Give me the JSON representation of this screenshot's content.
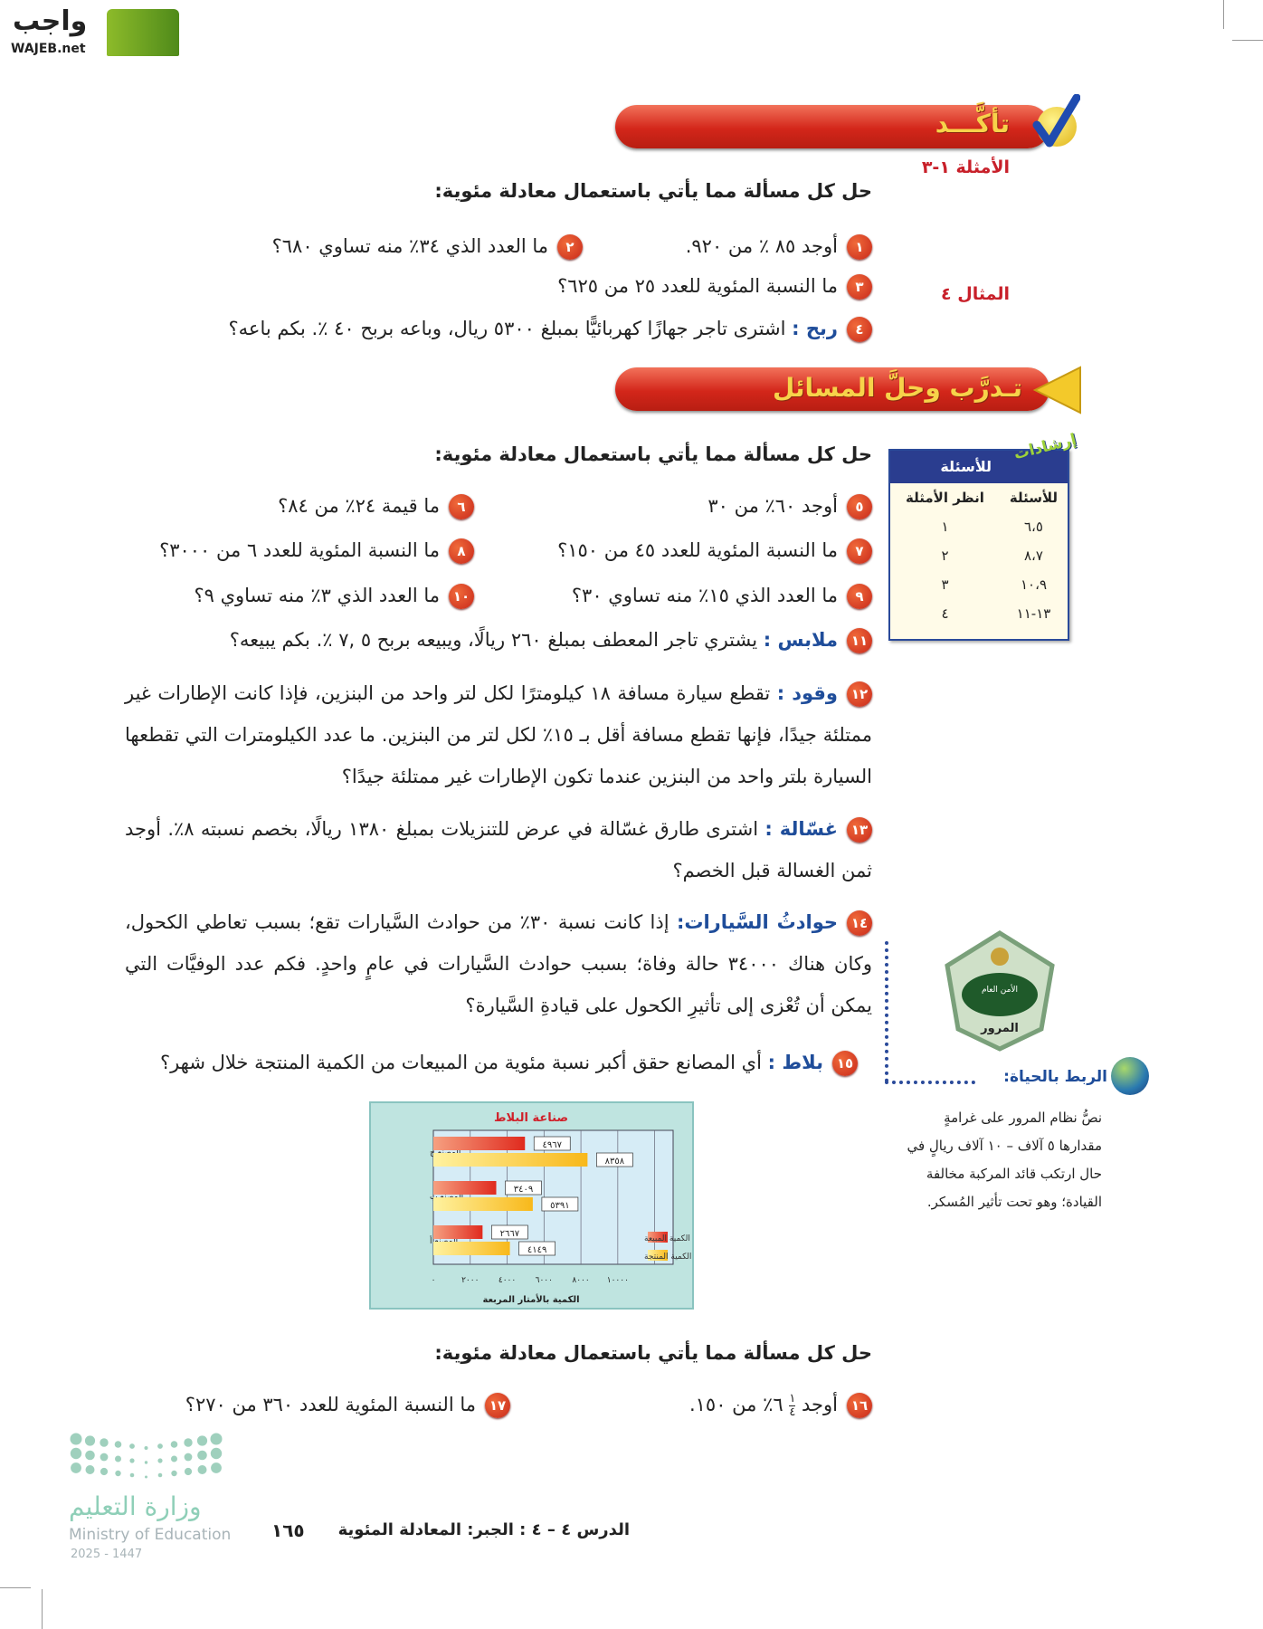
{
  "logo": {
    "arabic": "واجب",
    "latin": "WAJEB.net"
  },
  "check_section": {
    "title": "تأكَّـــد",
    "examples_ref": "الأمثلة ١-٣",
    "instruction": "حل كل مسألة مما يأتي باستعمال معادلة مئوية:",
    "example4_ref": "المثال ٤",
    "questions": [
      {
        "n": "١",
        "text": "أوجد ٨٥ ٪ من ٩٢٠."
      },
      {
        "n": "٢",
        "text": "ما العدد الذي ٣٤٪ منه تساوي ٦٨٠؟"
      },
      {
        "n": "٣",
        "text": "ما النسبة المئوية للعدد ٢٥ من ٦٢٥؟"
      },
      {
        "n": "٤",
        "label": "ربح :",
        "text": "اشترى تاجر جهازًا كهربائيًّا بمبلغ ٥٣٠٠ ريال، وباعه بربح ٤٠ ٪. بكم باعه؟"
      }
    ]
  },
  "practice_section": {
    "title": "تـدرَّب وحلَّ المسائل",
    "instruction": "حل كل مسألة مما يأتي باستعمال معادلة مئوية:",
    "questions": [
      {
        "n": "٥",
        "text": "أوجد ٦٠٪ من ٣٠"
      },
      {
        "n": "٦",
        "text": "ما قيمة ٢٤٪ من ٨٤؟"
      },
      {
        "n": "٧",
        "text": "ما النسبة المئوية للعدد ٤٥ من ١٥٠؟"
      },
      {
        "n": "٨",
        "text": "ما النسبة المئوية للعدد ٦ من ٣٠٠٠؟"
      },
      {
        "n": "٩",
        "text": "ما العدد الذي ١٥٪ منه تساوي ٣٠؟"
      },
      {
        "n": "١٠",
        "text": "ما العدد الذي ٣٪ منه تساوي ٩؟"
      },
      {
        "n": "١١",
        "label": "ملابس :",
        "text": "يشتري تاجر المعطف بمبلغ ٢٦٠ ريالًا، ويبيعه بربح ٥ ,٧ ٪. بكم يبيعه؟"
      },
      {
        "n": "١٢",
        "label": "وقود :",
        "text": "تقطع سيارة مسافة ١٨ كيلومترًا لكل لتر واحد من البنزين، فإذا كانت الإطارات غير ممتلئة جيدًا، فإنها تقطع مسافة أقل بـ ١٥٪ لكل لتر من البنزين. ما عدد الكيلومترات التي تقطعها السيارة بلتر واحد من البنزين عندما تكون الإطارات غير ممتلئة جيدًا؟"
      },
      {
        "n": "١٣",
        "label": "غسّالة :",
        "text": "اشترى طارق غسّالة في عرض للتنزيلات بمبلغ ١٣٨٠ ريالًا، بخصم نسبته ٨٪. أوجد ثمن الغسالة قبل الخصم؟"
      },
      {
        "n": "١٤",
        "label": "حوادثُ السَّيارات:",
        "text": "إذا كانت نسبة ٣٠٪ من حوادث السَّيارات تقع؛ بسبب تعاطي الكحول، وكان هناك ٣٤٠٠٠ حالة وفاة؛ بسبب حوادث السَّيارات في عامٍ واحدٍ. فكم عدد الوفيَّات التي يمكن أن تُعْزى إلى تأثيرِ الكحول على قيادةِ السَّيارة؟"
      },
      {
        "n": "١٥",
        "label": "بلاط :",
        "text": "أي المصانع حقق أكبر نسبة مئوية من المبيعات من الكمية المنتجة خلال شهر؟"
      }
    ]
  },
  "hints": {
    "badge": "إرشادات",
    "header": "للأسئلة",
    "columns": [
      "للأسئلة",
      "انظر الأمثلة"
    ],
    "rows": [
      [
        "٦،٥",
        "١"
      ],
      [
        "٨،٧",
        "٢"
      ],
      [
        "١٠،٩",
        "٣"
      ],
      [
        "١٣-١١",
        "٤"
      ]
    ]
  },
  "emblem": {
    "top": "الأمن العام",
    "bottom": "المرور"
  },
  "life_connection": {
    "title": "الربط بالحياة:",
    "text": "نصُّ نظام المرور على غرامةٍ مقدارها ٥ آلاف – ١٠ آلاف ريالٍ في حال ارتكب قائد المركبة مخالفة القيادة؛ وهو تحت تأثير المُسكر."
  },
  "chart_data": {
    "type": "bar",
    "orientation": "horizontal",
    "title": "صناعة البلاط",
    "xlabel": "الكمية بالأمتار المربعة",
    "ylabel": "",
    "categories": [
      "المصنع ج",
      "المصنع ب",
      "المصنع أ"
    ],
    "series": [
      {
        "name": "الكمية المبيعة",
        "values": [
          4967,
          3409,
          2667
        ],
        "labels": [
          "٤٩٦٧",
          "٣٤٠٩",
          "٢٦٦٧"
        ],
        "color": "#e02a1e"
      },
      {
        "name": "الكمية المنتجة",
        "values": [
          8358,
          5391,
          4149
        ],
        "labels": [
          "٨٣٥٨",
          "٥٣٩١",
          "٤١٤٩"
        ],
        "color": "#f8c21a"
      }
    ],
    "xticks": [
      0,
      2000,
      4000,
      6000,
      8000,
      10000
    ],
    "xtick_labels": [
      "٠",
      "٢٠٠٠",
      "٤٠٠٠",
      "٦٠٠٠",
      "٨٠٠٠",
      "١٠٠٠٠"
    ],
    "xlim": [
      0,
      13000
    ],
    "grid": true,
    "legend": "bottom-right"
  },
  "final_section": {
    "instruction": "حل كل مسألة مما يأتي باستعمال معادلة مئوية:",
    "questions": [
      {
        "n": "١٦",
        "text_a": "أوجد",
        "frac_num": "١",
        "frac_den": "٤",
        "text_b": "٦٪ من ١٥٠."
      },
      {
        "n": "١٧",
        "text": "ما النسبة المئوية للعدد ٣٦٠ من ٢٧٠؟"
      }
    ]
  },
  "footer": {
    "lesson": "الدرس ٤ – ٤ : الجبر: المعادلة المئوية",
    "page": "١٦٥",
    "ministry_ar": "وزارة التعليم",
    "ministry_en": "Ministry of Education",
    "year": "2025 - 1447"
  }
}
